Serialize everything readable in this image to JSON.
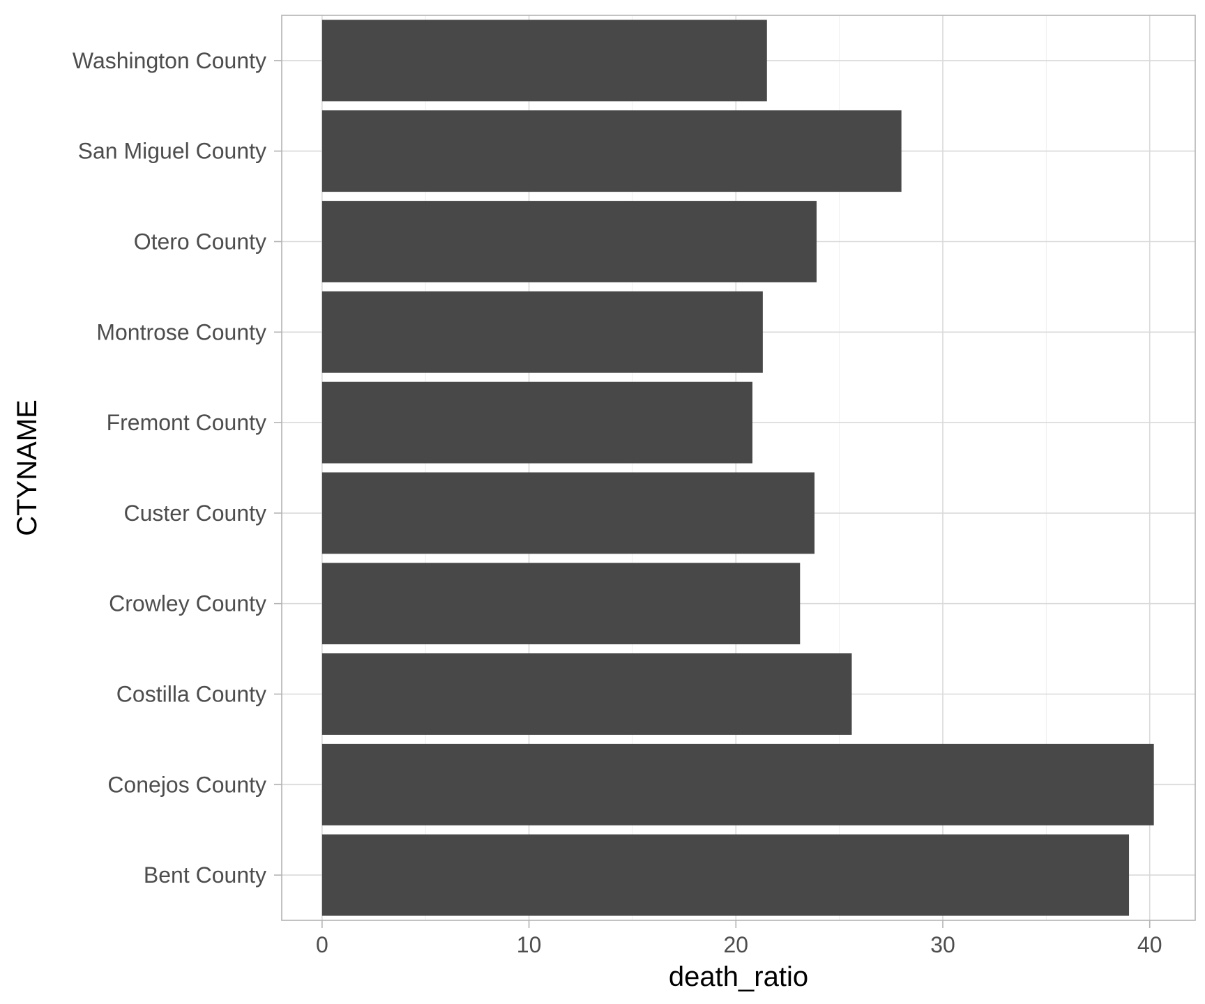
{
  "chart_data": {
    "type": "bar",
    "orientation": "horizontal",
    "xlabel": "death_ratio",
    "ylabel": "CTYNAME",
    "categories": [
      "Bent County",
      "Conejos County",
      "Costilla County",
      "Crowley County",
      "Custer County",
      "Fremont County",
      "Montrose County",
      "Otero County",
      "San Miguel County",
      "Washington County"
    ],
    "values": [
      39.0,
      40.2,
      25.6,
      23.1,
      23.8,
      20.8,
      21.3,
      23.9,
      28.0,
      21.5
    ],
    "x_ticks": [
      0,
      10,
      20,
      30,
      40
    ],
    "x_tick_labels": [
      "0",
      "10",
      "20",
      "30",
      "40"
    ],
    "xlim": [
      -1.95,
      42.2
    ],
    "grid": true,
    "bar_color": "#484848",
    "theme": "light"
  }
}
